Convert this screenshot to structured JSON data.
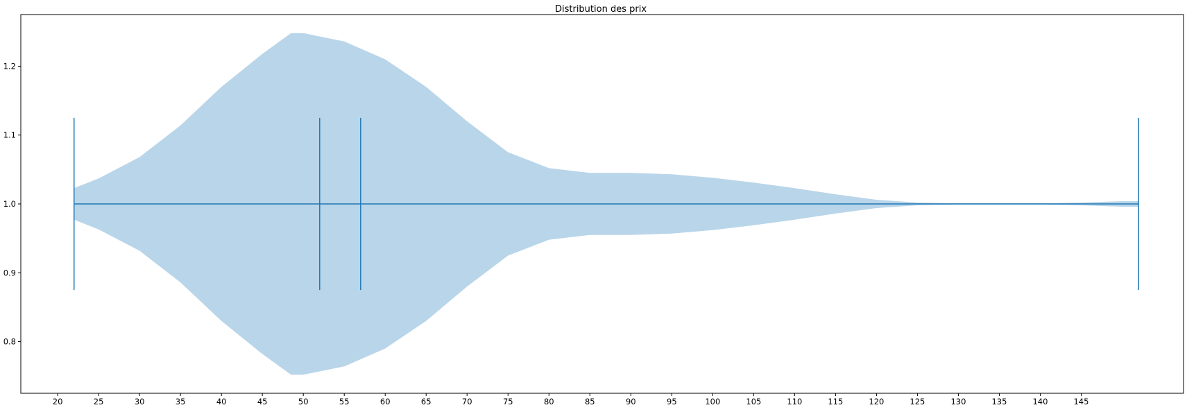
{
  "chart_data": {
    "type": "violin",
    "orientation": "horizontal",
    "title": "Distribution des prix",
    "xlabel": "",
    "ylabel": "",
    "xlim": [
      15.5,
      157.5
    ],
    "ylim": [
      0.725,
      1.275
    ],
    "x_ticks": [
      20,
      25,
      30,
      35,
      40,
      45,
      50,
      55,
      60,
      65,
      70,
      75,
      80,
      85,
      90,
      95,
      100,
      105,
      110,
      115,
      120,
      125,
      130,
      135,
      140,
      145
    ],
    "y_ticks": [
      0.8,
      0.9,
      1.0,
      1.1,
      1.2
    ],
    "violin": {
      "position": 1.0,
      "fill_color": "#b9d5e9",
      "line_color": "#1f77b4",
      "min": 22,
      "max": 152,
      "median": 52,
      "mean": 57,
      "cap_halfwidth": 0.125,
      "density_profile": [
        [
          22,
          0.023
        ],
        [
          25,
          0.037
        ],
        [
          30,
          0.068
        ],
        [
          35,
          0.114
        ],
        [
          40,
          0.17
        ],
        [
          45,
          0.218
        ],
        [
          48.5,
          0.248
        ],
        [
          50,
          0.248
        ],
        [
          55,
          0.236
        ],
        [
          60,
          0.21
        ],
        [
          65,
          0.17
        ],
        [
          70,
          0.12
        ],
        [
          75,
          0.075
        ],
        [
          80,
          0.052
        ],
        [
          85,
          0.045
        ],
        [
          90,
          0.045
        ],
        [
          95,
          0.043
        ],
        [
          100,
          0.038
        ],
        [
          105,
          0.031
        ],
        [
          110,
          0.023
        ],
        [
          115,
          0.014
        ],
        [
          120,
          0.006
        ],
        [
          125,
          0.002
        ],
        [
          130,
          0.001
        ],
        [
          135,
          0.001
        ],
        [
          140,
          0.001
        ],
        [
          145,
          0.002
        ],
        [
          150,
          0.004
        ],
        [
          152,
          0.004
        ]
      ]
    }
  }
}
